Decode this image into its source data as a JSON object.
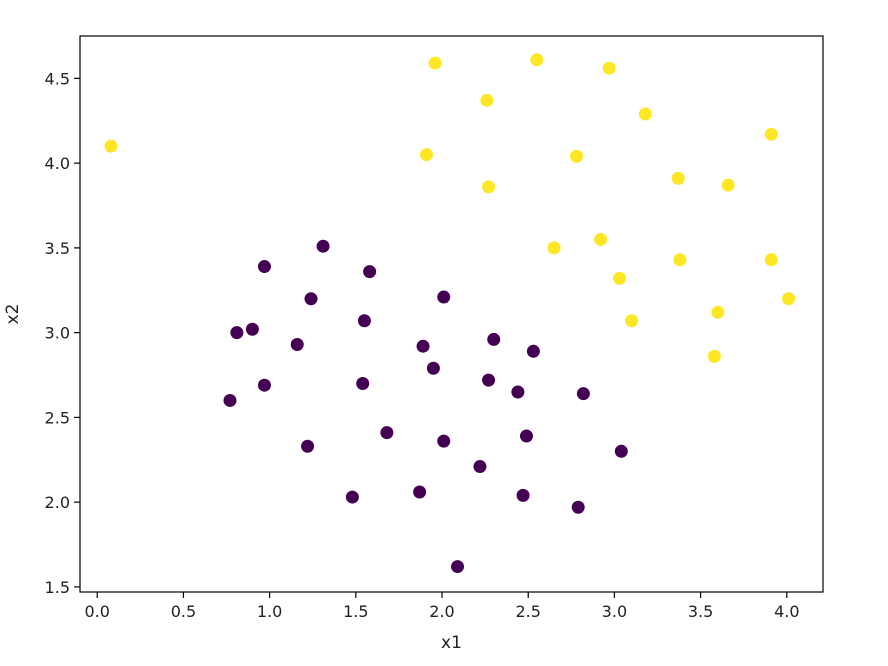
{
  "chart_data": {
    "type": "scatter",
    "xlabel": "x1",
    "ylabel": "x2",
    "xlim": [
      -0.1,
      4.21
    ],
    "ylim": [
      1.47,
      4.75
    ],
    "xticks": [
      0.0,
      0.5,
      1.0,
      1.5,
      2.0,
      2.5,
      3.0,
      3.5,
      4.0
    ],
    "xtick_labels": [
      "0.0",
      "0.5",
      "1.0",
      "1.5",
      "2.0",
      "2.5",
      "3.0",
      "3.5",
      "4.0"
    ],
    "yticks": [
      1.5,
      2.0,
      2.5,
      3.0,
      3.5,
      4.0,
      4.5
    ],
    "ytick_labels": [
      "1.5",
      "2.0",
      "2.5",
      "3.0",
      "3.5",
      "4.0",
      "4.5"
    ],
    "grid": false,
    "legend": "none",
    "series": [
      {
        "color": "#440154",
        "points": [
          [
            1.31,
            3.51
          ],
          [
            0.97,
            3.39
          ],
          [
            1.58,
            3.36
          ],
          [
            1.24,
            3.2
          ],
          [
            2.01,
            3.21
          ],
          [
            1.55,
            3.07
          ],
          [
            0.81,
            3.0
          ],
          [
            0.9,
            3.02
          ],
          [
            1.16,
            2.93
          ],
          [
            1.89,
            2.92
          ],
          [
            2.3,
            2.96
          ],
          [
            2.53,
            2.89
          ],
          [
            1.95,
            2.79
          ],
          [
            0.97,
            2.69
          ],
          [
            1.54,
            2.7
          ],
          [
            2.27,
            2.72
          ],
          [
            2.44,
            2.65
          ],
          [
            2.82,
            2.64
          ],
          [
            0.77,
            2.6
          ],
          [
            1.68,
            2.41
          ],
          [
            2.49,
            2.39
          ],
          [
            2.01,
            2.36
          ],
          [
            1.22,
            2.33
          ],
          [
            3.04,
            2.3
          ],
          [
            2.22,
            2.21
          ],
          [
            1.87,
            2.06
          ],
          [
            1.48,
            2.03
          ],
          [
            2.47,
            2.04
          ],
          [
            2.79,
            1.97
          ],
          [
            2.09,
            1.62
          ]
        ]
      },
      {
        "color": "#fde725",
        "points": [
          [
            0.08,
            4.1
          ],
          [
            1.96,
            4.59
          ],
          [
            2.55,
            4.61
          ],
          [
            2.97,
            4.56
          ],
          [
            2.26,
            4.37
          ],
          [
            3.18,
            4.29
          ],
          [
            3.91,
            4.17
          ],
          [
            1.91,
            4.05
          ],
          [
            2.78,
            4.04
          ],
          [
            3.37,
            3.91
          ],
          [
            3.66,
            3.87
          ],
          [
            2.27,
            3.86
          ],
          [
            2.65,
            3.5
          ],
          [
            2.92,
            3.55
          ],
          [
            3.38,
            3.43
          ],
          [
            3.91,
            3.43
          ],
          [
            3.03,
            3.32
          ],
          [
            4.01,
            3.2
          ],
          [
            3.6,
            3.12
          ],
          [
            3.1,
            3.07
          ],
          [
            3.58,
            2.86
          ]
        ]
      }
    ]
  }
}
